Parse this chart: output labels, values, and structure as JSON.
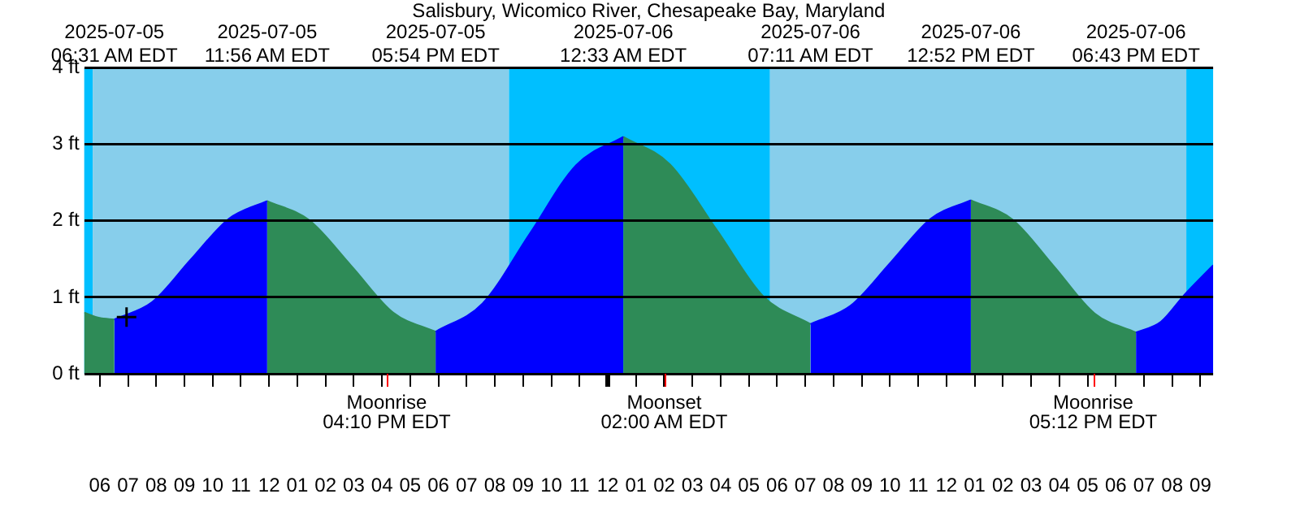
{
  "chart_data": {
    "type": "area",
    "title": "Salisbury, Wicomico River, Chesapeake Bay, Maryland",
    "xlim": [
      "2025-07-05T05:27",
      "2025-07-06T21:27"
    ],
    "ylim": [
      0,
      4
    ],
    "x2lim": [
      "2025-07-05T05:27",
      "2025-07-06T21:27"
    ],
    "x2ticks": [
      {
        "value": "2025-07-05T06:31",
        "label": "2025-07-05\n06:31 AM EDT"
      },
      {
        "value": "2025-07-05T11:56",
        "label": "2025-07-05\n11:56 AM EDT"
      },
      {
        "value": "2025-07-05T17:54",
        "label": "2025-07-05\n05:54 PM EDT"
      },
      {
        "value": "2025-07-06T00:33",
        "label": "2025-07-06\n12:33 AM EDT"
      },
      {
        "value": "2025-07-06T07:11",
        "label": "2025-07-06\n07:11 AM EDT"
      },
      {
        "value": "2025-07-06T12:52",
        "label": "2025-07-06\n12:52 PM EDT"
      },
      {
        "value": "2025-07-06T18:43",
        "label": "2025-07-06\n06:43 PM EDT"
      }
    ],
    "ref_lines": [
      {
        "axis": "x",
        "value": "2025-07-05T16:10",
        "label": "Moonrise\n04:10 PM EDT",
        "color": "#ff0000"
      },
      {
        "axis": "x",
        "value": "2025-07-06T02:00",
        "label": "Moonset\n02:00 AM EDT",
        "color": "#ff0000"
      },
      {
        "axis": "x",
        "value": "2025-07-06T17:12",
        "label": "Moonrise\n05:12 PM EDT",
        "color": "#ff0000"
      }
    ],
    "yticks": [
      {
        "value": 0,
        "label": "0 ft"
      },
      {
        "value": 1,
        "label": "1 ft"
      },
      {
        "value": 2,
        "label": "2 ft"
      },
      {
        "value": 3,
        "label": "3 ft"
      },
      {
        "value": 4,
        "label": "4 ft"
      }
    ],
    "xticks": [
      {
        "value": "2025-07-05T06:00",
        "label": "06"
      },
      {
        "value": "2025-07-05T07:00",
        "label": "07"
      },
      {
        "value": "2025-07-05T08:00",
        "label": "08"
      },
      {
        "value": "2025-07-05T09:00",
        "label": "09"
      },
      {
        "value": "2025-07-05T10:00",
        "label": "10"
      },
      {
        "value": "2025-07-05T11:00",
        "label": "11"
      },
      {
        "value": "2025-07-05T12:00",
        "label": "12"
      },
      {
        "value": "2025-07-05T13:00",
        "label": "01"
      },
      {
        "value": "2025-07-05T14:00",
        "label": "02"
      },
      {
        "value": "2025-07-05T15:00",
        "label": "03"
      },
      {
        "value": "2025-07-05T16:00",
        "label": "04"
      },
      {
        "value": "2025-07-05T17:00",
        "label": "05"
      },
      {
        "value": "2025-07-05T18:00",
        "label": "06"
      },
      {
        "value": "2025-07-05T19:00",
        "label": "07"
      },
      {
        "value": "2025-07-05T20:00",
        "label": "08"
      },
      {
        "value": "2025-07-05T21:00",
        "label": "09"
      },
      {
        "value": "2025-07-05T22:00",
        "label": "10"
      },
      {
        "value": "2025-07-05T23:00",
        "label": "11"
      },
      {
        "value": "2025-07-06T00:00",
        "label": "12"
      },
      {
        "value": "2025-07-06T01:00",
        "label": "01"
      },
      {
        "value": "2025-07-06T02:00",
        "label": "02"
      },
      {
        "value": "2025-07-06T03:00",
        "label": "03"
      },
      {
        "value": "2025-07-06T04:00",
        "label": "04"
      },
      {
        "value": "2025-07-06T05:00",
        "label": "05"
      },
      {
        "value": "2025-07-06T06:00",
        "label": "06"
      },
      {
        "value": "2025-07-06T07:00",
        "label": "07"
      },
      {
        "value": "2025-07-06T08:00",
        "label": "08"
      },
      {
        "value": "2025-07-06T09:00",
        "label": "09"
      },
      {
        "value": "2025-07-06T10:00",
        "label": "10"
      },
      {
        "value": "2025-07-06T11:00",
        "label": "11"
      },
      {
        "value": "2025-07-06T12:00",
        "label": "12"
      },
      {
        "value": "2025-07-06T13:00",
        "label": "01"
      },
      {
        "value": "2025-07-06T14:00",
        "label": "02"
      },
      {
        "value": "2025-07-06T15:00",
        "label": "03"
      },
      {
        "value": "2025-07-06T16:00",
        "label": "04"
      },
      {
        "value": "2025-07-06T17:00",
        "label": "05"
      },
      {
        "value": "2025-07-06T18:00",
        "label": "06"
      },
      {
        "value": "2025-07-06T19:00",
        "label": "07"
      },
      {
        "value": "2025-07-06T20:00",
        "label": "08"
      },
      {
        "value": "2025-07-06T21:00",
        "label": "09"
      }
    ],
    "grid": "y",
    "bands": [
      {
        "axis": "x",
        "from": "2025-07-05T05:27",
        "to": "2025-07-05T05:45",
        "color": "#00bfff"
      },
      {
        "axis": "x",
        "from": "2025-07-05T05:45",
        "to": "2025-07-05T20:30",
        "color": "#87ceeb"
      },
      {
        "axis": "x",
        "from": "2025-07-05T20:30",
        "to": "2025-07-06T05:45",
        "color": "#00bfff"
      },
      {
        "axis": "x",
        "from": "2025-07-06T05:45",
        "to": "2025-07-06T20:30",
        "color": "#87ceeb"
      },
      {
        "axis": "x",
        "from": "2025-07-06T20:30",
        "to": "2025-07-06T21:27",
        "color": "#00bfff"
      }
    ],
    "series": [
      {
        "color": "#0000ff",
        "x": [
          "2025-07-05T06:31",
          "2025-07-05T07:52",
          "2025-07-05T09:13",
          "2025-07-05T10:35",
          "2025-07-05T11:56",
          "2025-07-05T15:00",
          "2025-07-05T17:54",
          "2025-07-05T19:34",
          "2025-07-05T21:14",
          "2025-07-05T22:53",
          "2025-07-06T00:33",
          "2025-07-06T04:00",
          "2025-07-06T07:11",
          "2025-07-06T08:36",
          "2025-07-06T10:02",
          "2025-07-06T11:27",
          "2025-07-06T12:52",
          "2025-07-06T16:00",
          "2025-07-06T18:43",
          "2025-07-06T19:36",
          "2025-07-06T20:27",
          "2025-07-06T21:27"
        ],
        "values": [
          0.71,
          0.94,
          1.49,
          2.03,
          2.26,
          null,
          0.55,
          0.92,
          1.83,
          2.73,
          3.1,
          null,
          0.65,
          0.89,
          1.46,
          2.03,
          2.27,
          null,
          0.54,
          0.68,
          1.04,
          1.42
        ]
      },
      {
        "color": "#2e8b57",
        "x": [
          "2025-07-05T05:27",
          "2025-07-05T06:00",
          "2025-07-05T06:31",
          "2025-07-05T09:00",
          "2025-07-05T11:56",
          "2025-07-05T13:25",
          "2025-07-05T14:55",
          "2025-07-05T16:24",
          "2025-07-05T17:54",
          "2025-07-05T21:00",
          "2025-07-06T00:33",
          "2025-07-06T02:12",
          "2025-07-06T03:52",
          "2025-07-06T05:31",
          "2025-07-06T07:11",
          "2025-07-06T10:00",
          "2025-07-06T12:52",
          "2025-07-06T14:20",
          "2025-07-06T15:48",
          "2025-07-06T17:15",
          "2025-07-06T18:43"
        ],
        "values": [
          0.8,
          0.73,
          0.71,
          null,
          2.26,
          2.01,
          1.41,
          0.8,
          0.55,
          null,
          3.1,
          2.74,
          1.88,
          1.01,
          0.65,
          null,
          2.27,
          2.02,
          1.41,
          0.79,
          0.54
        ]
      },
      {
        "type": "scatter",
        "marker": "cross",
        "color": "#000000",
        "x": [
          "2025-07-05T06:57"
        ],
        "values": [
          0.74
        ]
      }
    ],
    "legend": false
  }
}
